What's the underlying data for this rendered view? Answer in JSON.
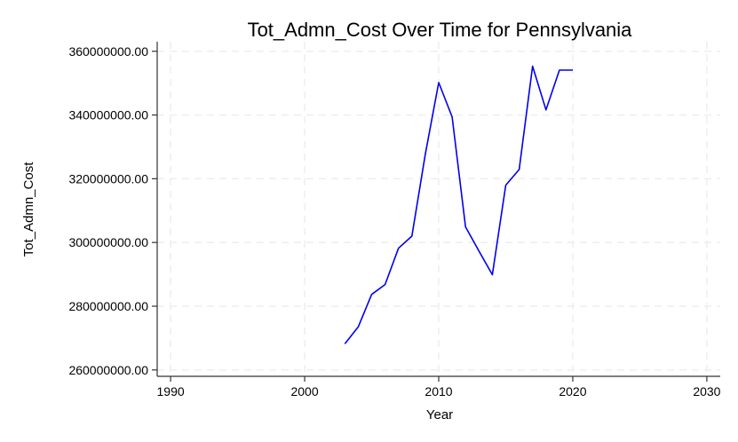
{
  "chart_data": {
    "type": "line",
    "title": "Tot_Admn_Cost Over Time for Pennsylvania",
    "xlabel": "Year",
    "ylabel": "Tot_Admn_Cost",
    "xlim": [
      1989,
      2031
    ],
    "ylim": [
      258000000,
      363000000
    ],
    "x_ticks": [
      1990,
      2000,
      2010,
      2020,
      2030
    ],
    "y_ticks": [
      260000000,
      280000000,
      300000000,
      320000000,
      340000000,
      360000000
    ],
    "x_tick_labels": [
      "1990",
      "2000",
      "2010",
      "2020",
      "2030"
    ],
    "y_tick_labels": [
      "260000000.00",
      "280000000.00",
      "300000000.00",
      "320000000.00",
      "340000000.00",
      "360000000.00"
    ],
    "grid": true,
    "line_color": "#0000ee",
    "grid_color": "#eeeeee",
    "series": [
      {
        "x": [
          2003,
          2004,
          2005,
          2006,
          2007,
          2008,
          2009,
          2010,
          2011,
          2012,
          2013,
          2014,
          2015,
          2016,
          2017,
          2018,
          2019,
          2020
        ],
        "values": [
          268200000,
          273500000,
          283700000,
          286800000,
          298200000,
          302000000,
          327700000,
          350200000,
          339400000,
          304900000,
          297300000,
          289900000,
          318000000,
          322900000,
          355300000,
          341600000,
          354100000,
          354100000
        ]
      }
    ]
  }
}
